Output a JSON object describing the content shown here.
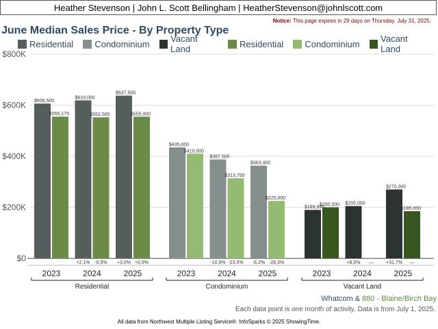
{
  "header": {
    "agents": "Heather Stevenson | John L. Scott Bellingham | HeatherStevenson@johnlscott.com"
  },
  "notice": {
    "label": "Notice:",
    "text": "This page expires in 29 days on Thursday, July 31, 2025."
  },
  "region": {
    "primary": "Whatcom",
    "separator": "&",
    "secondary": "880 - Blaine/Birch Bay"
  },
  "data_note": "Each data point is one month of activity. Data is from July 1, 2025.",
  "footer": "All data from Northwest Multiple Listing Service®. InfoSparks © 2025 ShowingTime.",
  "colors": {
    "Residential_a": "#555e5c",
    "Residential_b": "#6a8c48",
    "Condominium_a": "#858f8d",
    "Condominium_b": "#95bb72",
    "VacantLand_a": "#2b3431",
    "VacantLand_b": "#38561f",
    "title": "#2d4a66"
  },
  "chart_data": {
    "type": "bar",
    "title": "June Median Sales Price - By Property Type",
    "ylim": [
      0,
      800000
    ],
    "yticks": [
      0,
      200000,
      400000,
      600000,
      800000
    ],
    "ytick_labels": [
      "$0",
      "$200K",
      "$400K",
      "$600K",
      "$800K"
    ],
    "grid": true,
    "legend": {
      "placement": "top",
      "entries": [
        {
          "label": "Residential",
          "color": "#555e5c"
        },
        {
          "label": "Condominium",
          "color": "#858f8d"
        },
        {
          "label": "Vacant Land",
          "color": "#2b3431"
        },
        {
          "label": "Residential",
          "color": "#6a8c48"
        },
        {
          "label": "Condominium",
          "color": "#95bb72"
        },
        {
          "label": "Vacant Land",
          "color": "#38561f"
        }
      ]
    },
    "groups": [
      {
        "name": "Residential",
        "colors": [
          "#555e5c",
          "#6a8c48"
        ],
        "years": [
          {
            "year": "2023",
            "values": [
              606500,
              555175
            ],
            "labels": [
              "$606,500",
              "$555,175"
            ],
            "changes": [
              "",
              ""
            ]
          },
          {
            "year": "2024",
            "values": [
              619000,
              552500
            ],
            "labels": [
              "$619,000",
              "$552,500"
            ],
            "changes": [
              "+2.1%",
              "-0.5%"
            ]
          },
          {
            "year": "2025",
            "values": [
              637500,
              555000
            ],
            "labels": [
              "$637,500",
              "$555,000"
            ],
            "changes": [
              "+3.0%",
              "+0.5%"
            ]
          }
        ]
      },
      {
        "name": "Condominium",
        "colors": [
          "#858f8d",
          "#95bb72"
        ],
        "years": [
          {
            "year": "2023",
            "values": [
              435000,
              410000
            ],
            "labels": [
              "$435,000",
              "$410,000"
            ],
            "changes": [
              "",
              ""
            ]
          },
          {
            "year": "2024",
            "values": [
              387500,
              313750
            ],
            "labels": [
              "$387,500",
              "$313,750"
            ],
            "changes": [
              "-10.9%",
              "-23.5%"
            ]
          },
          {
            "year": "2025",
            "values": [
              363400,
              225000
            ],
            "labels": [
              "$363,400",
              "$225,000"
            ],
            "changes": [
              "-6.2%",
              "-28.3%"
            ]
          }
        ]
      },
      {
        "name": "Vacant Land",
        "colors": [
          "#2b3431",
          "#38561f"
        ],
        "years": [
          {
            "year": "2023",
            "values": [
              189950,
              200000
            ],
            "labels": [
              "$189,950",
              "$200,000"
            ],
            "changes": [
              "",
              ""
            ]
          },
          {
            "year": "2024",
            "values": [
              205000,
              null
            ],
            "labels": [
              "$205,000",
              ""
            ],
            "changes": [
              "+8.0%",
              "—"
            ]
          },
          {
            "year": "2025",
            "values": [
              270000,
              185000
            ],
            "labels": [
              "$270,000",
              "$185,000"
            ],
            "changes": [
              "+31.7%",
              "—"
            ]
          }
        ]
      }
    ]
  }
}
